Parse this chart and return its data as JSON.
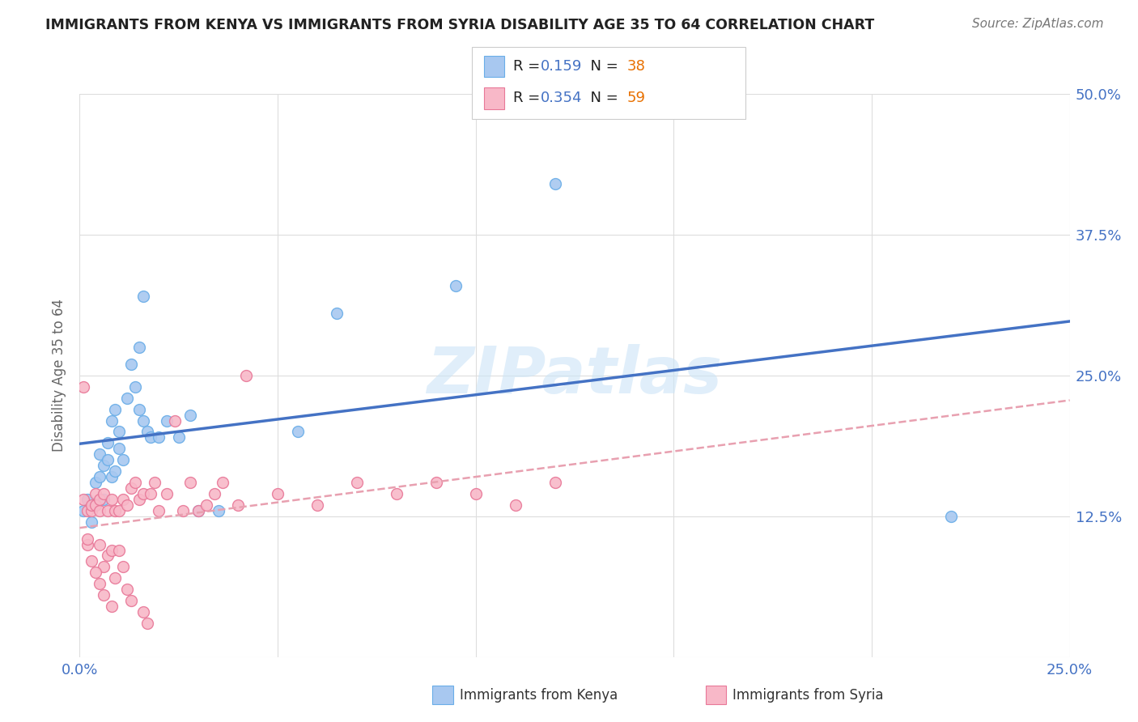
{
  "title": "IMMIGRANTS FROM KENYA VS IMMIGRANTS FROM SYRIA DISABILITY AGE 35 TO 64 CORRELATION CHART",
  "source": "Source: ZipAtlas.com",
  "ylabel": "Disability Age 35 to 64",
  "xlim": [
    0.0,
    0.25
  ],
  "ylim": [
    0.0,
    0.5
  ],
  "kenya_color": "#a8c8f0",
  "kenya_edge": "#6aaee8",
  "syria_color": "#f8b8c8",
  "syria_edge": "#e87898",
  "kenya_R": 0.159,
  "kenya_N": 38,
  "syria_R": 0.354,
  "syria_N": 59,
  "kenya_scatter_x": [
    0.001,
    0.002,
    0.003,
    0.004,
    0.004,
    0.005,
    0.005,
    0.006,
    0.006,
    0.007,
    0.007,
    0.008,
    0.008,
    0.009,
    0.009,
    0.01,
    0.01,
    0.011,
    0.012,
    0.013,
    0.014,
    0.015,
    0.015,
    0.016,
    0.016,
    0.017,
    0.018,
    0.02,
    0.022,
    0.025,
    0.028,
    0.03,
    0.035,
    0.055,
    0.065,
    0.095,
    0.12,
    0.22
  ],
  "kenya_scatter_y": [
    0.13,
    0.14,
    0.12,
    0.155,
    0.135,
    0.18,
    0.16,
    0.14,
    0.17,
    0.19,
    0.175,
    0.16,
    0.21,
    0.22,
    0.165,
    0.2,
    0.185,
    0.175,
    0.23,
    0.26,
    0.24,
    0.275,
    0.22,
    0.21,
    0.32,
    0.2,
    0.195,
    0.195,
    0.21,
    0.195,
    0.215,
    0.13,
    0.13,
    0.2,
    0.305,
    0.33,
    0.42,
    0.125
  ],
  "syria_scatter_x": [
    0.001,
    0.001,
    0.002,
    0.002,
    0.003,
    0.003,
    0.004,
    0.004,
    0.005,
    0.005,
    0.005,
    0.006,
    0.006,
    0.007,
    0.007,
    0.008,
    0.008,
    0.009,
    0.009,
    0.01,
    0.01,
    0.011,
    0.011,
    0.012,
    0.012,
    0.013,
    0.013,
    0.014,
    0.015,
    0.016,
    0.016,
    0.017,
    0.018,
    0.019,
    0.02,
    0.022,
    0.024,
    0.026,
    0.028,
    0.03,
    0.032,
    0.034,
    0.036,
    0.04,
    0.042,
    0.05,
    0.06,
    0.07,
    0.08,
    0.09,
    0.1,
    0.11,
    0.12,
    0.002,
    0.003,
    0.004,
    0.005,
    0.006,
    0.008
  ],
  "syria_scatter_y": [
    0.14,
    0.24,
    0.1,
    0.13,
    0.13,
    0.135,
    0.145,
    0.135,
    0.1,
    0.13,
    0.14,
    0.145,
    0.08,
    0.09,
    0.13,
    0.14,
    0.095,
    0.13,
    0.07,
    0.13,
    0.095,
    0.08,
    0.14,
    0.135,
    0.06,
    0.05,
    0.15,
    0.155,
    0.14,
    0.145,
    0.04,
    0.03,
    0.145,
    0.155,
    0.13,
    0.145,
    0.21,
    0.13,
    0.155,
    0.13,
    0.135,
    0.145,
    0.155,
    0.135,
    0.25,
    0.145,
    0.135,
    0.155,
    0.145,
    0.155,
    0.145,
    0.135,
    0.155,
    0.105,
    0.085,
    0.075,
    0.065,
    0.055,
    0.045
  ],
  "kenya_line_color": "#4472c4",
  "syria_line_color": "#e8a0b0",
  "watermark": "ZIPatlas",
  "background_color": "#ffffff",
  "grid_color": "#dddddd",
  "number_color": "#4472c4",
  "n_color": "#e87000"
}
